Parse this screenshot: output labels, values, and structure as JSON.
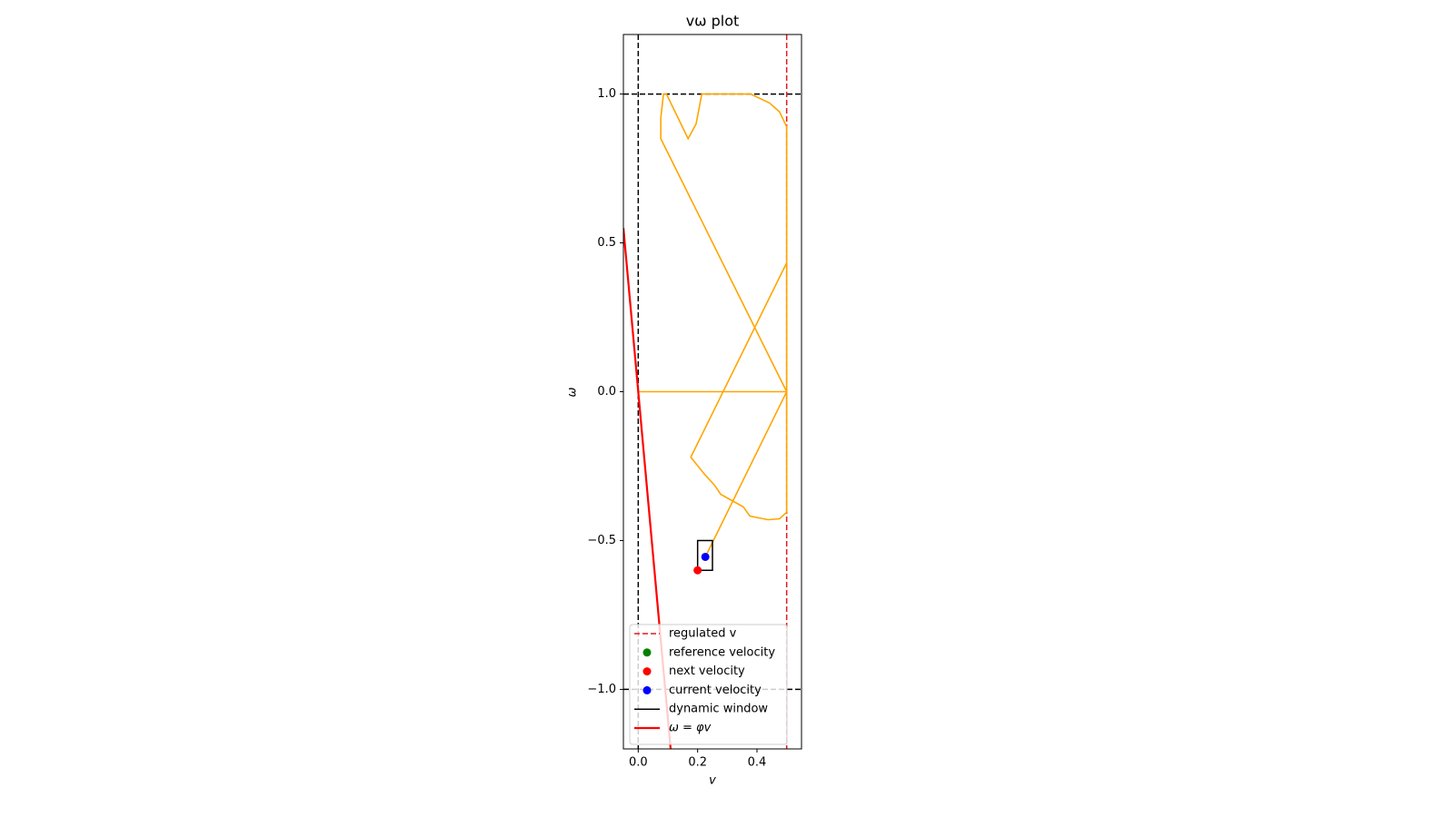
{
  "chart_data": {
    "type": "line",
    "title": "vω plot",
    "xlabel": "v",
    "ylabel": "ω",
    "xlim": [
      -0.05,
      0.55
    ],
    "ylim": [
      -1.2,
      1.2
    ],
    "xticks": [
      {
        "value": 0,
        "label": "0.0"
      },
      {
        "value": 0.2,
        "label": "0.2"
      },
      {
        "value": 0.4,
        "label": "0.4"
      }
    ],
    "yticks": [
      {
        "value": -1,
        "label": "−1.0"
      },
      {
        "value": -0.5,
        "label": "−0.5"
      },
      {
        "value": 0,
        "label": "0.0"
      },
      {
        "value": 0.5,
        "label": "0.5"
      },
      {
        "value": 1,
        "label": "1.0"
      }
    ],
    "guides": [
      {
        "orientation": "vertical",
        "value": 0,
        "color": "#000000"
      },
      {
        "orientation": "horizontal",
        "value": 1,
        "color": "#000000"
      },
      {
        "orientation": "horizontal",
        "value": -1,
        "color": "#000000"
      },
      {
        "orientation": "vertical",
        "value": 0.5,
        "color": "#e31a1c",
        "name": "regulated v"
      }
    ],
    "series": [
      {
        "color": "#ffa500",
        "x": [
          0,
          0.5,
          0.5,
          0.476,
          0.442,
          0.378,
          0.214,
          0.195,
          0.168,
          0.095,
          0.085,
          0.076,
          0.076,
          0.5,
          0.5,
          0.476,
          0.437,
          0.376,
          0.354,
          0.278,
          0.257,
          0.223,
          0.177,
          0.5,
          0.5,
          0.226
        ],
        "values": [
          0,
          0,
          0.89,
          0.94,
          0.97,
          1.0,
          1.0,
          0.9,
          0.85,
          1.0,
          1.0,
          0.92,
          0.85,
          0,
          -0.405,
          -0.427,
          -0.43,
          -0.418,
          -0.387,
          -0.345,
          -0.314,
          -0.277,
          -0.22,
          0.433,
          0,
          -0.555
        ]
      },
      {
        "name": "ω = φv",
        "color": "#ff0000",
        "x": [
          -0.05,
          0.1091
        ],
        "values": [
          0.55,
          -1.2
        ]
      }
    ],
    "window": {
      "name": "dynamic window",
      "color": "#000000",
      "x": [
        0.2,
        0.25
      ],
      "values": [
        -0.6,
        -0.5
      ]
    },
    "points": [
      {
        "name": "reference velocity",
        "color": "#008000"
      },
      {
        "name": "next velocity",
        "color": "#ff0000",
        "x": 0.2,
        "value": -0.6
      },
      {
        "name": "current velocity",
        "color": "#0000ff",
        "x": 0.226,
        "value": -0.555
      }
    ],
    "legend": "lower center"
  }
}
